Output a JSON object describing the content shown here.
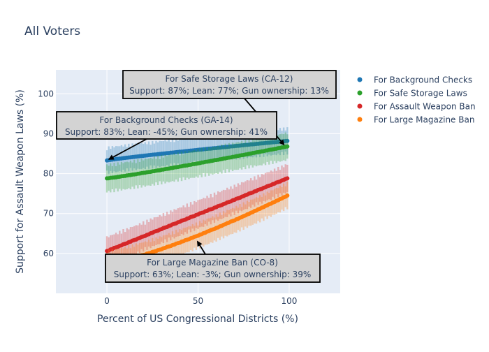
{
  "chart_data": {
    "type": "scatter",
    "title": "All Voters",
    "xlabel": "Percent of US Congressional Districts (%)",
    "ylabel": "Support for Assault Weapon Laws (%)",
    "xlim": [
      -28,
      128
    ],
    "ylim": [
      50,
      106
    ],
    "x_ticks": [
      0,
      50,
      100
    ],
    "y_ticks": [
      60,
      70,
      80,
      90,
      100
    ],
    "grid": true,
    "legend_position": "right",
    "series": [
      {
        "name": "For Background Checks",
        "color": "#1f77b4",
        "y_start": 83.3,
        "y_end": 88.2,
        "curve": 0.9,
        "err": 3.0
      },
      {
        "name": "For Safe Storage Laws",
        "color": "#2ca02c",
        "y_start": 78.8,
        "y_end": 86.8,
        "curve": 1.1,
        "err": 3.2
      },
      {
        "name": "For Assault Weapon Ban",
        "color": "#d62728",
        "y_start": 60.6,
        "y_end": 78.8,
        "curve": 1.0,
        "err": 3.3
      },
      {
        "name": "For Large Magazine Ban",
        "color": "#ff7f0e",
        "y_start": 57.5,
        "y_end": 74.5,
        "curve": 1.3,
        "err": 3.0
      }
    ],
    "annotations": [
      {
        "id": "ca12",
        "title": "For Safe Storage Laws (CA-12)",
        "detail": "Support: 87%; Lean: 77%; Gun ownership: 13%",
        "x": 98,
        "y": 86.8
      },
      {
        "id": "ga14",
        "title": "For Background Checks (GA-14)",
        "detail": "Support: 83%; Lean: -45%; Gun ownership: 41%",
        "x": 0,
        "y": 83.3
      },
      {
        "id": "co8",
        "title": "For Large Magazine Ban (CO-8)",
        "detail": "Support: 63%; Lean: -3%; Gun ownership: 39%",
        "x": 49,
        "y": 63.5
      }
    ]
  }
}
